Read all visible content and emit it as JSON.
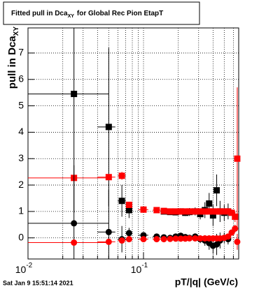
{
  "chart_data": {
    "type": "scatter",
    "title": "Fitted pull in Dca",
    "title_subscript": "XY",
    "title_rest": "for Global Rec Pion EtapT",
    "x_label": "pT/|q| (GeV/c)",
    "y_label": "pull in Dca",
    "y_label_subscript": "XY",
    "timestamp": "Sat Jan  9 15:51:14 2021",
    "log_x": true,
    "grid": true,
    "xlim": [
      0.01,
      0.667
    ],
    "ylim": [
      -0.8,
      7.95
    ],
    "xticks": [
      {
        "value": 0.01,
        "label": "10",
        "superscript": "-2"
      },
      {
        "value": 0.1,
        "label": "10",
        "superscript": "-1"
      }
    ],
    "xminor": [
      0.02,
      0.03,
      0.04,
      0.05,
      0.06,
      0.07,
      0.08,
      0.09,
      0.2,
      0.3,
      0.4,
      0.5,
      0.6
    ],
    "yticks": [
      0,
      1,
      2,
      3,
      4,
      5,
      6,
      7
    ],
    "x": [
      0.025,
      0.05,
      0.065,
      0.075,
      0.1,
      0.13,
      0.15,
      0.17,
      0.19,
      0.21,
      0.23,
      0.25,
      0.28,
      0.31,
      0.34,
      0.37,
      0.4,
      0.43,
      0.46,
      0.5,
      0.54,
      0.58,
      0.62,
      0.648
    ],
    "x_low": [
      0.01,
      0.04,
      0.06,
      0.07,
      0.09,
      0.12,
      0.14,
      0.16,
      0.18,
      0.2,
      0.22,
      0.24,
      0.265,
      0.295,
      0.325,
      0.355,
      0.385,
      0.415,
      0.445,
      0.48,
      0.52,
      0.56,
      0.6,
      0.635
    ],
    "x_high": [
      0.05,
      0.057,
      0.07,
      0.08,
      0.11,
      0.14,
      0.16,
      0.18,
      0.2,
      0.22,
      0.24,
      0.26,
      0.295,
      0.325,
      0.355,
      0.385,
      0.415,
      0.445,
      0.48,
      0.52,
      0.56,
      0.6,
      0.635,
      0.667
    ],
    "series": [
      {
        "color": "#000000",
        "marker": "square",
        "values": [
          5.45,
          4.2,
          1.4,
          1.05,
          null,
          null,
          1.0,
          0.98,
          0.97,
          1.0,
          0.95,
          0.98,
          1.0,
          0.9,
          1.05,
          1.3,
          0.85,
          1.8,
          1.0,
          0.95,
          1.0,
          null,
          null,
          null
        ],
        "errors": [
          4.5,
          3.0,
          0.6,
          0.3,
          null,
          null,
          0.1,
          0.1,
          0.1,
          0.12,
          0.12,
          0.15,
          0.15,
          0.2,
          0.3,
          0.4,
          0.4,
          0.6,
          0.4,
          0.3,
          0.3,
          null,
          null,
          null
        ]
      },
      {
        "color": "#ff0000",
        "marker": "square",
        "values": [
          2.27,
          2.3,
          2.35,
          1.25,
          1.07,
          1.05,
          1.02,
          1.0,
          1.0,
          1.0,
          1.0,
          1.0,
          1.0,
          1.0,
          1.0,
          1.0,
          1.0,
          1.0,
          1.0,
          1.0,
          1.0,
          0.95,
          0.8,
          3.0
        ],
        "errors": [
          0.1,
          0.1,
          0.15,
          0.1,
          0.05,
          0.05,
          0.03,
          0.03,
          0.03,
          0.03,
          0.03,
          0.03,
          0.03,
          0.03,
          0.03,
          0.03,
          0.03,
          0.03,
          0.03,
          0.04,
          0.05,
          0.1,
          0.2,
          2.7
        ]
      },
      {
        "color": "#000000",
        "marker": "circle",
        "values": [
          0.55,
          0.22,
          -0.05,
          0.18,
          0.1,
          0.05,
          0.02,
          0.0,
          0.05,
          0.08,
          0.03,
          0.0,
          0.05,
          -0.05,
          -0.1,
          -0.2,
          -0.3,
          -0.25,
          -0.1,
          0.0,
          -0.05,
          null,
          null,
          null
        ],
        "errors": [
          2.2,
          1.6,
          0.5,
          0.2,
          0.1,
          0.08,
          0.08,
          0.08,
          0.08,
          0.1,
          0.1,
          0.1,
          0.12,
          0.15,
          0.2,
          0.25,
          0.3,
          0.4,
          0.3,
          0.2,
          0.2,
          null,
          null,
          null
        ]
      },
      {
        "color": "#ff0000",
        "marker": "circle",
        "values": [
          -0.18,
          -0.15,
          -0.1,
          -0.05,
          -0.05,
          -0.05,
          -0.05,
          -0.04,
          -0.03,
          -0.03,
          -0.03,
          -0.02,
          -0.02,
          -0.02,
          -0.02,
          -0.02,
          -0.02,
          -0.02,
          -0.02,
          0.0,
          0.05,
          0.2,
          0.35,
          -0.15
        ],
        "errors": [
          0.05,
          0.05,
          0.05,
          0.04,
          0.03,
          0.03,
          0.02,
          0.02,
          0.02,
          0.02,
          0.02,
          0.02,
          0.02,
          0.02,
          0.02,
          0.02,
          0.02,
          0.02,
          0.02,
          0.03,
          0.04,
          0.08,
          0.15,
          0.3
        ]
      }
    ]
  }
}
